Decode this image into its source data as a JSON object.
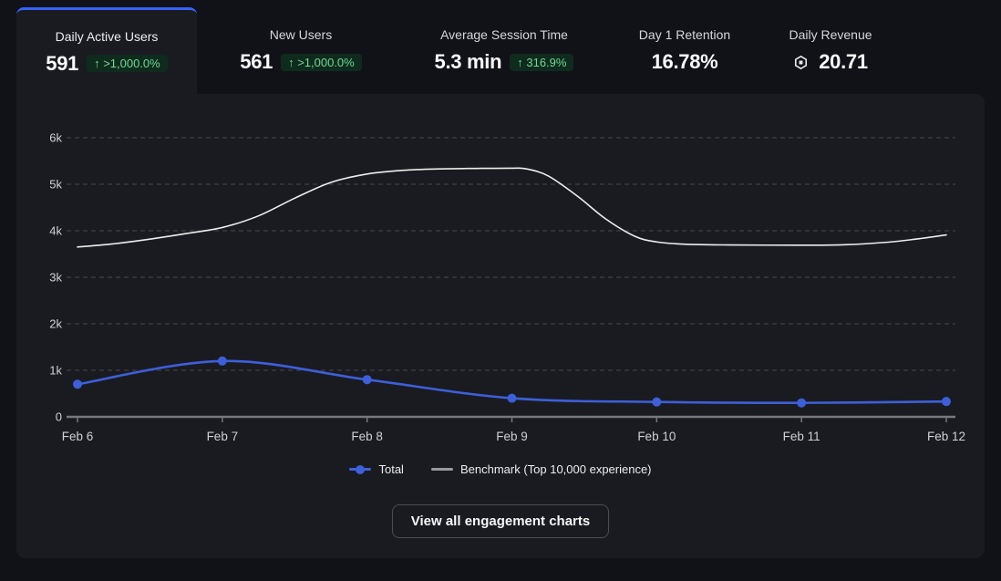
{
  "tabs": [
    {
      "label": "Daily Active Users",
      "value": "591",
      "badge": "↑ >1,000.0%",
      "active": true
    },
    {
      "label": "New Users",
      "value": "561",
      "badge": "↑ >1,000.0%"
    },
    {
      "label": "Average Session Time",
      "value": "5.3 min",
      "badge": "↑ 316.9%"
    },
    {
      "label": "Day 1 Retention",
      "value": "16.78%"
    },
    {
      "label": "Daily Revenue",
      "value": "20.71",
      "icon": "robux-icon"
    }
  ],
  "chart_data": {
    "type": "line",
    "title": "Daily Active Users",
    "x": [
      "Feb 6",
      "Feb 7",
      "Feb 8",
      "Feb 9",
      "Feb 10",
      "Feb 11",
      "Feb 12"
    ],
    "yticks": [
      "0",
      "1k",
      "2k",
      "3k",
      "4k",
      "5k",
      "6k"
    ],
    "ylim": [
      0,
      6000
    ],
    "grid": "horizontal-dashed",
    "legend_position": "bottom",
    "series": [
      {
        "name": "Total",
        "type": "line+markers",
        "color": "#3d5fd9",
        "values": [
          700,
          1200,
          800,
          400,
          320,
          300,
          330
        ]
      },
      {
        "name": "Benchmark (Top 10,000 experience)",
        "type": "line",
        "color": "#ededee",
        "legend_color": "#97999d",
        "points_day_value": [
          [
            0,
            3650
          ],
          [
            0.25,
            3720
          ],
          [
            0.5,
            3820
          ],
          [
            0.75,
            3940
          ],
          [
            1,
            4070
          ],
          [
            1.25,
            4320
          ],
          [
            1.5,
            4700
          ],
          [
            1.75,
            5040
          ],
          [
            2,
            5220
          ],
          [
            2.25,
            5300
          ],
          [
            2.5,
            5330
          ],
          [
            2.75,
            5340
          ],
          [
            3,
            5345
          ],
          [
            3.1,
            5330
          ],
          [
            3.25,
            5180
          ],
          [
            3.45,
            4750
          ],
          [
            3.65,
            4250
          ],
          [
            3.85,
            3880
          ],
          [
            4,
            3760
          ],
          [
            4.2,
            3710
          ],
          [
            4.5,
            3695
          ],
          [
            5,
            3690
          ],
          [
            5.3,
            3700
          ],
          [
            5.6,
            3755
          ],
          [
            5.8,
            3825
          ],
          [
            6,
            3910
          ]
        ]
      }
    ]
  },
  "button": {
    "label": "View all engagement charts"
  },
  "colors": {
    "accent_blue": "#3562ff",
    "series_blue": "#3d5fd9",
    "benchmark_line": "#ededee",
    "benchmark_legend": "#97999d",
    "badge_bg": "#0f2b1d",
    "badge_text": "#6fd897",
    "card_bg": "#1a1b20",
    "page_bg": "#101217",
    "grid_line": "#46484d",
    "axis_line": "#77797d",
    "tick_label": "#cfd1d4"
  }
}
